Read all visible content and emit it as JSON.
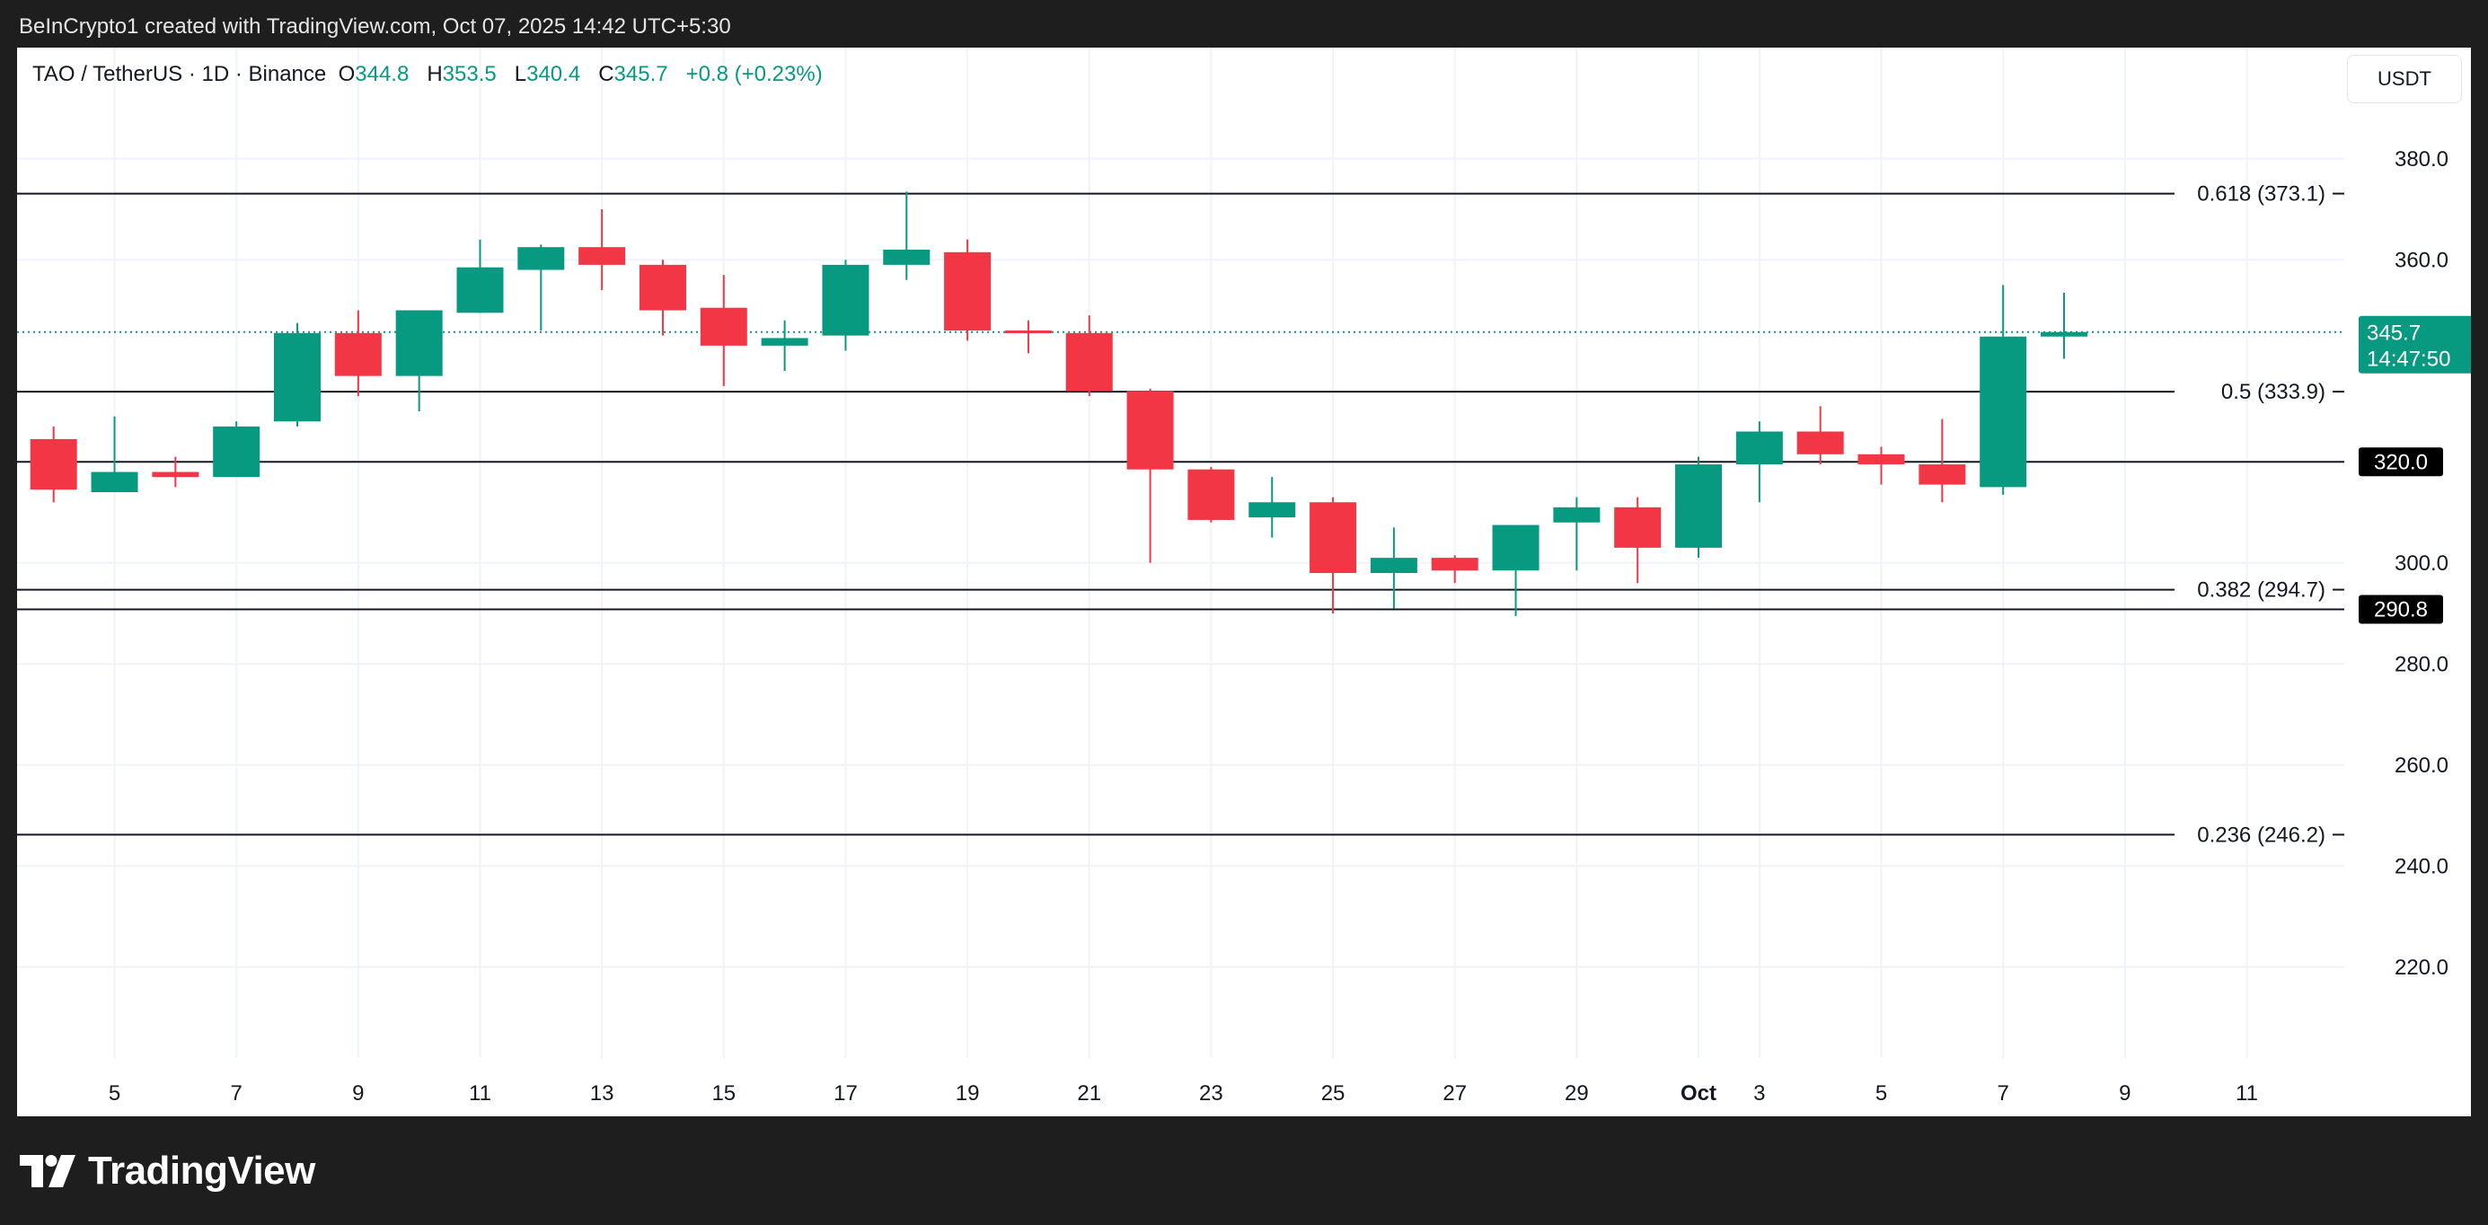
{
  "header": {
    "attribution": "BeInCrypto1 created with TradingView.com, Oct 07, 2025 14:42 UTC+5:30"
  },
  "symbol_info": {
    "pair": "TAO / TetherUS · 1D · Binance",
    "o_label": "O",
    "o_value": "344.8",
    "h_label": "H",
    "h_value": "353.5",
    "l_label": "L",
    "l_value": "340.4",
    "c_label": "C",
    "c_value": "345.7",
    "change": "+0.8 (+0.23%)"
  },
  "currency": "USDT",
  "brand": "TradingView",
  "colors": {
    "up": "#089981",
    "down": "#f23645",
    "level_line": "#131722",
    "grid": "#f0f3fa",
    "text": "#131722"
  },
  "chart_data": {
    "type": "candlestick",
    "ylim": [
      202,
      402
    ],
    "xlim": [
      -0.6,
      37.6
    ],
    "y_ticks": [
      {
        "value": 380,
        "label": "380.0"
      },
      {
        "value": 360,
        "label": "360.0"
      },
      {
        "value": 300,
        "label": "300.0"
      },
      {
        "value": 280,
        "label": "280.0"
      },
      {
        "value": 260,
        "label": "260.0"
      },
      {
        "value": 240,
        "label": "240.0"
      },
      {
        "value": 220,
        "label": "220.0"
      }
    ],
    "x_ticks": [
      {
        "index": 1,
        "label": "5"
      },
      {
        "index": 3,
        "label": "7"
      },
      {
        "index": 5,
        "label": "9"
      },
      {
        "index": 7,
        "label": "11"
      },
      {
        "index": 9,
        "label": "13"
      },
      {
        "index": 11,
        "label": "15"
      },
      {
        "index": 13,
        "label": "17"
      },
      {
        "index": 15,
        "label": "19"
      },
      {
        "index": 17,
        "label": "21"
      },
      {
        "index": 19,
        "label": "23"
      },
      {
        "index": 21,
        "label": "25"
      },
      {
        "index": 23,
        "label": "27"
      },
      {
        "index": 25,
        "label": "29"
      },
      {
        "index": 27,
        "label": "Oct",
        "bold": true
      },
      {
        "index": 28,
        "label": "3"
      },
      {
        "index": 30,
        "label": "5"
      },
      {
        "index": 32,
        "label": "7"
      },
      {
        "index": 34,
        "label": "9"
      },
      {
        "index": 36,
        "label": "11"
      }
    ],
    "candles": [
      {
        "o": 324.5,
        "h": 327.0,
        "l": 312.0,
        "c": 314.5
      },
      {
        "o": 314.0,
        "h": 329.0,
        "l": 314.0,
        "c": 318.0
      },
      {
        "o": 318.0,
        "h": 321.0,
        "l": 315.0,
        "c": 317.0
      },
      {
        "o": 317.0,
        "h": 328.0,
        "l": 317.0,
        "c": 327.0
      },
      {
        "o": 328.0,
        "h": 347.5,
        "l": 327.0,
        "c": 345.5
      },
      {
        "o": 345.5,
        "h": 350.0,
        "l": 333.0,
        "c": 337.0
      },
      {
        "o": 337.0,
        "h": 350.0,
        "l": 330.0,
        "c": 350.0
      },
      {
        "o": 349.5,
        "h": 364.0,
        "l": 349.5,
        "c": 358.5
      },
      {
        "o": 358.0,
        "h": 363.0,
        "l": 346.0,
        "c": 362.5
      },
      {
        "o": 362.5,
        "h": 370.0,
        "l": 354.0,
        "c": 359.0
      },
      {
        "o": 359.0,
        "h": 360.0,
        "l": 345.0,
        "c": 350.0
      },
      {
        "o": 350.5,
        "h": 357.0,
        "l": 335.0,
        "c": 343.0
      },
      {
        "o": 343.0,
        "h": 348.0,
        "l": 338.0,
        "c": 344.5
      },
      {
        "o": 345.0,
        "h": 360.0,
        "l": 342.0,
        "c": 359.0
      },
      {
        "o": 359.0,
        "h": 373.5,
        "l": 356.0,
        "c": 362.0
      },
      {
        "o": 361.5,
        "h": 364.0,
        "l": 344.0,
        "c": 346.0
      },
      {
        "o": 346.0,
        "h": 348.0,
        "l": 341.5,
        "c": 345.5
      },
      {
        "o": 345.5,
        "h": 349.0,
        "l": 333.0,
        "c": 334.0
      },
      {
        "o": 334.0,
        "h": 334.5,
        "l": 300.0,
        "c": 318.5
      },
      {
        "o": 318.5,
        "h": 319.0,
        "l": 308.0,
        "c": 308.5
      },
      {
        "o": 309.0,
        "h": 317.0,
        "l": 305.0,
        "c": 312.0
      },
      {
        "o": 312.0,
        "h": 313.0,
        "l": 290.0,
        "c": 298.0
      },
      {
        "o": 298.0,
        "h": 307.0,
        "l": 291.0,
        "c": 301.0
      },
      {
        "o": 301.0,
        "h": 301.5,
        "l": 296.0,
        "c": 298.5
      },
      {
        "o": 298.5,
        "h": 307.5,
        "l": 289.5,
        "c": 307.5
      },
      {
        "o": 308.0,
        "h": 313.0,
        "l": 298.5,
        "c": 311.0
      },
      {
        "o": 311.0,
        "h": 313.0,
        "l": 296.0,
        "c": 303.0
      },
      {
        "o": 303.0,
        "h": 321.0,
        "l": 301.0,
        "c": 319.5
      },
      {
        "o": 319.5,
        "h": 328.0,
        "l": 312.0,
        "c": 326.0
      },
      {
        "o": 326.0,
        "h": 331.0,
        "l": 319.5,
        "c": 321.5
      },
      {
        "o": 321.5,
        "h": 323.0,
        "l": 315.5,
        "c": 319.5
      },
      {
        "o": 319.5,
        "h": 328.5,
        "l": 312.0,
        "c": 315.5
      },
      {
        "o": 315.0,
        "h": 355.0,
        "l": 313.5,
        "c": 344.8
      },
      {
        "o": 344.8,
        "h": 353.5,
        "l": 340.4,
        "c": 345.7
      }
    ],
    "fib_levels": [
      {
        "value": 373.1,
        "label": "0.618 (373.1)"
      },
      {
        "value": 333.9,
        "label": "0.5 (333.9)"
      },
      {
        "value": 294.7,
        "label": "0.382 (294.7)"
      },
      {
        "value": 246.2,
        "label": "0.236 (246.2)"
      }
    ],
    "horizontal_lines": [
      {
        "value": 320.0,
        "label": "320.0"
      },
      {
        "value": 290.8,
        "label": "290.8"
      }
    ],
    "last_price": {
      "value": 345.7,
      "label": "345.7",
      "countdown": "14:47:50"
    }
  }
}
